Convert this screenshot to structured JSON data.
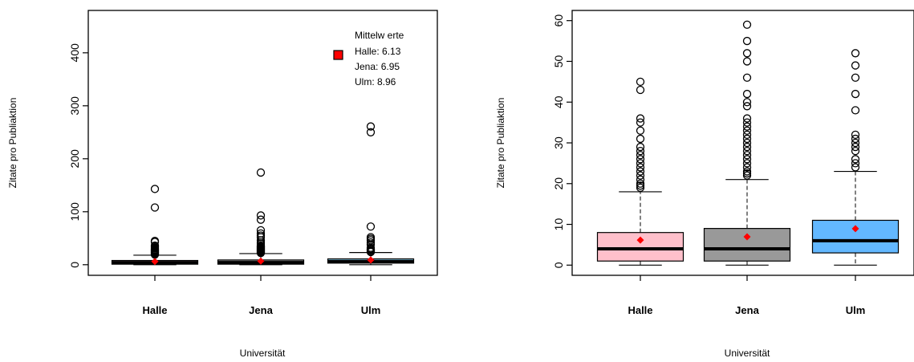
{
  "chart_data": [
    {
      "type": "box",
      "categories": [
        "Halle",
        "Jena",
        "Ulm"
      ],
      "xlabel": "Universität",
      "ylabel": "Zitate pro Publiaktion",
      "ylim": [
        -20,
        480
      ],
      "yticks": [
        0,
        100,
        200,
        300,
        400
      ],
      "grid": false,
      "boxes": [
        {
          "category": "Halle",
          "min": 0,
          "q1": 1,
          "median": 4,
          "q3": 8,
          "whisker_high": 18,
          "mean": 6.13,
          "outliers": [
            19,
            20,
            21,
            22,
            23,
            24,
            25,
            26,
            27,
            28,
            29,
            31,
            33,
            35,
            36,
            43,
            45,
            108,
            143
          ]
        },
        {
          "category": "Jena",
          "min": 0,
          "q1": 1,
          "median": 4,
          "q3": 9,
          "whisker_high": 21,
          "mean": 6.95,
          "outliers": [
            22,
            23,
            24,
            25,
            26,
            27,
            28,
            29,
            30,
            31,
            32,
            33,
            34,
            35,
            36,
            39,
            42,
            46,
            52,
            55,
            59,
            65,
            85,
            93,
            174
          ]
        },
        {
          "category": "Ulm",
          "min": 0,
          "q1": 3,
          "median": 6,
          "q3": 11,
          "whisker_high": 23,
          "mean": 8.96,
          "outliers": [
            24,
            25,
            26,
            28,
            29,
            30,
            32,
            38,
            42,
            46,
            49,
            52,
            72,
            250,
            261
          ]
        }
      ],
      "fill_colors": [
        "#ffc0cb",
        "#999999",
        "#87ceeb"
      ],
      "mean_marker_color": "#ff0000",
      "legend": {
        "position": "top-right",
        "title": "Mittelw erte",
        "entries": [
          "Halle: 6.13",
          "Jena: 6.95",
          "Ulm: 8.96"
        ]
      }
    },
    {
      "type": "box",
      "categories": [
        "Halle",
        "Jena",
        "Ulm"
      ],
      "xlabel": "Universität",
      "ylabel": "Zitate pro Publiaktion",
      "ylim": [
        -2.5,
        62.5
      ],
      "yticks": [
        0,
        10,
        20,
        30,
        40,
        50,
        60
      ],
      "grid": false,
      "boxes": [
        {
          "category": "Halle",
          "min": 0,
          "q1": 1,
          "median": 4,
          "q3": 8,
          "whisker_high": 18,
          "mean": 6.13,
          "outliers": [
            19,
            19.5,
            20,
            21,
            22,
            23,
            24,
            25,
            26,
            27,
            28,
            29,
            31,
            33,
            35,
            36,
            43,
            45
          ]
        },
        {
          "category": "Jena",
          "min": 0,
          "q1": 1,
          "median": 4,
          "q3": 9,
          "whisker_high": 21,
          "mean": 6.95,
          "outliers": [
            22,
            22.5,
            23,
            24,
            25,
            26,
            27,
            28,
            29,
            30,
            31,
            32,
            33,
            34,
            35,
            36,
            39,
            40,
            42,
            46,
            50,
            52,
            55,
            59
          ]
        },
        {
          "category": "Ulm",
          "min": 0,
          "q1": 3,
          "median": 6,
          "q3": 11,
          "whisker_high": 23,
          "mean": 8.96,
          "outliers": [
            24,
            25,
            26,
            28,
            29,
            30,
            31,
            32,
            38,
            42,
            46,
            49,
            52
          ]
        }
      ],
      "fill_colors": [
        "#ffc0cb",
        "#999999",
        "#63b8ff"
      ],
      "mean_marker_color": "#ff0000"
    }
  ]
}
